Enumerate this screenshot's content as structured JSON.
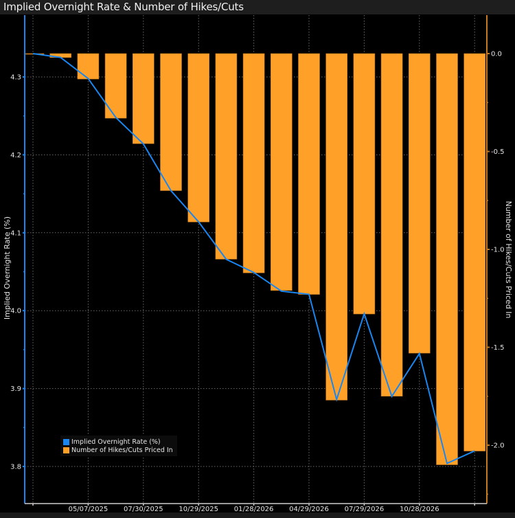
{
  "header": {
    "title": "Implied Overnight Rate & Number of Hikes/Cuts"
  },
  "colors": {
    "line": "#1a86f0",
    "bar": "#ffa128",
    "bar_edge": "#b8721c",
    "left_axis": "#1a86f0",
    "right_axis": "#c77a1e",
    "grid": "#6a6a6a",
    "x_axis": "#cfcfcf"
  },
  "legend": {
    "items": [
      {
        "label": "Implied Overnight Rate (%)",
        "color": "#1a86f0"
      },
      {
        "label": "Number of Hikes/Cuts Priced In",
        "color": "#ffa128"
      }
    ]
  },
  "chart_data": {
    "type": "bar+line",
    "title": "Implied Overnight Rate & Number of Hikes/Cuts",
    "xlabel": "",
    "x_tick_labels": [
      "05/07/2025",
      "07/30/2025",
      "10/29/2025",
      "01/28/2026",
      "04/29/2026",
      "07/29/2026",
      "10/28/2026"
    ],
    "x_tick_indices": [
      2,
      4,
      6,
      8,
      10,
      12,
      14
    ],
    "grid": true,
    "legend_position": "bottom-left",
    "left_axis": {
      "label": "Implied Overnight Rate (%)",
      "ticks": [
        4.3,
        4.2,
        4.1,
        4.0,
        3.9,
        3.8
      ],
      "tick_labels": [
        "4.3",
        "4.2",
        "4.1",
        "4.0",
        "3.9",
        "3.8"
      ],
      "range": [
        3.77,
        4.33
      ]
    },
    "right_axis": {
      "label": "Number of Hikes/Cuts Priced In",
      "ticks": [
        0.0,
        -0.5,
        -1.0,
        -1.5,
        -2.0
      ],
      "tick_labels": [
        "0.0",
        "-0.5",
        "-1.0",
        "-1.5",
        "-2.0"
      ],
      "range": [
        -2.25,
        0.0
      ]
    },
    "series": [
      {
        "name": "Implied Overnight Rate (%)",
        "type": "line",
        "axis": "left",
        "values": [
          4.33,
          4.325,
          4.298,
          4.248,
          4.214,
          4.154,
          4.114,
          4.066,
          4.049,
          4.025,
          4.021,
          3.886,
          3.996,
          3.89,
          3.945,
          3.804,
          3.82
        ]
      },
      {
        "name": "Number of Hikes/Cuts Priced In",
        "type": "bar",
        "axis": "right",
        "values": [
          0.0,
          -0.02,
          -0.13,
          -0.33,
          -0.46,
          -0.7,
          -0.86,
          -1.05,
          -1.12,
          -1.21,
          -1.23,
          -1.77,
          -1.33,
          -1.75,
          -1.53,
          -2.1,
          -2.03
        ]
      }
    ]
  }
}
